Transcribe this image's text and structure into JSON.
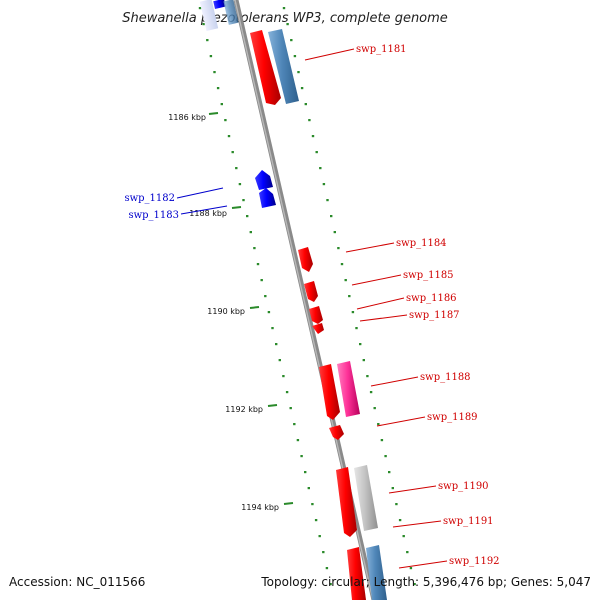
{
  "title": "Shewanella piezotolerans WP3, complete genome",
  "accession": "Accession: NC_011566",
  "summary": "Topology: circular; Length: 5,396,476 bp; Genes: 5,047",
  "ticks": [
    {
      "label": "1186 kbp"
    },
    {
      "label": "1188 kbp"
    },
    {
      "label": "1190 kbp"
    },
    {
      "label": "1192 kbp"
    },
    {
      "label": "1194 kbp"
    }
  ],
  "genes": [
    {
      "label": "swp_1181",
      "strand": "reverse",
      "color": "#ff0000"
    },
    {
      "label": "swp_1182",
      "strand": "forward",
      "color": "#0000ff"
    },
    {
      "label": "swp_1183",
      "strand": "forward",
      "color": "#0000ff"
    },
    {
      "label": "swp_1184",
      "strand": "reverse",
      "color": "#ff0000"
    },
    {
      "label": "swp_1185",
      "strand": "reverse",
      "color": "#ff0000"
    },
    {
      "label": "swp_1186",
      "strand": "reverse",
      "color": "#ff0000"
    },
    {
      "label": "swp_1187",
      "strand": "reverse",
      "color": "#ff0000"
    },
    {
      "label": "swp_1188",
      "strand": "reverse",
      "color": "#ff0000"
    },
    {
      "label": "swp_1189",
      "strand": "reverse",
      "color": "#ff0000"
    },
    {
      "label": "swp_1190",
      "strand": "reverse",
      "color": "#ff0000"
    },
    {
      "label": "swp_1191",
      "strand": "reverse",
      "color": "#ff0000"
    },
    {
      "label": "swp_1192",
      "strand": "reverse",
      "color": "#ff0000"
    }
  ],
  "colors": {
    "cds_red": "#ff0000",
    "cds_blue": "#0000ff",
    "steel_blue": "#4f86b8",
    "magenta": "#ff3399",
    "gray": "#bdbdbd",
    "backbone": "#888888",
    "tick_green": "#2a8a2a"
  }
}
